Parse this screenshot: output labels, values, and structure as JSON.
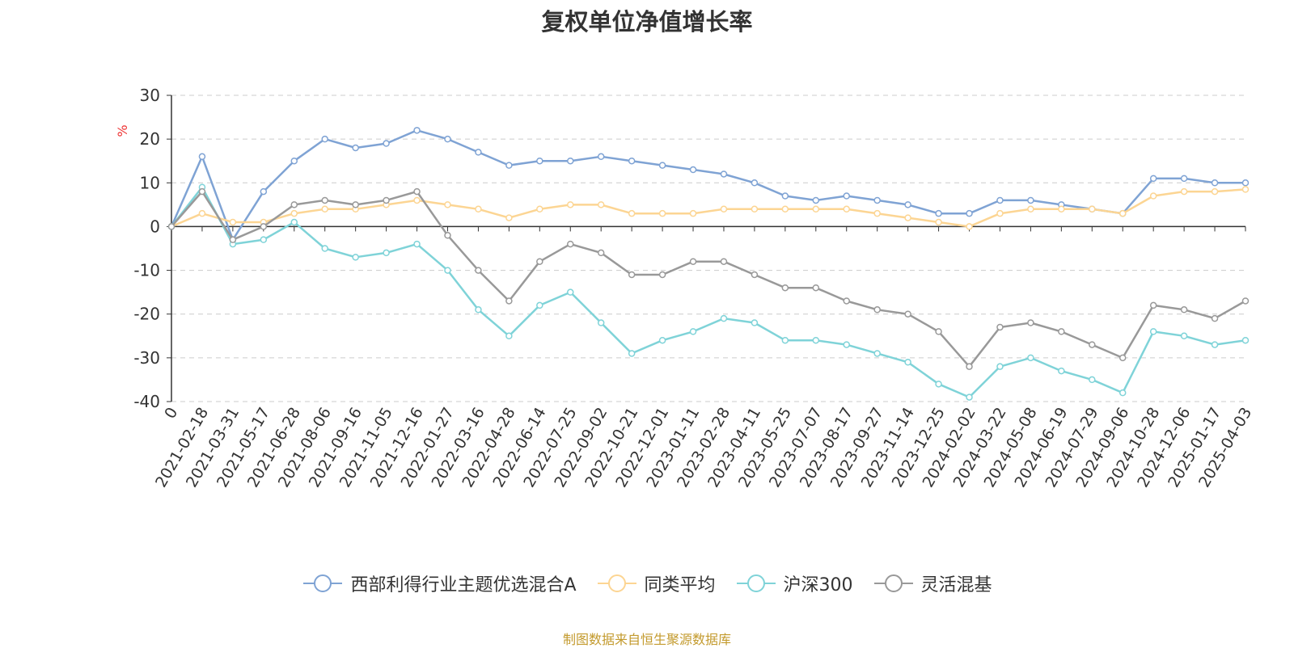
{
  "chart_data": {
    "type": "line",
    "title": "复权单位净值增长率",
    "ylabel": "%",
    "xlabel": "",
    "ylim": [
      -40,
      30
    ],
    "yticks": [
      30,
      20,
      10,
      0,
      -10,
      -20,
      -30,
      -40
    ],
    "grid": true,
    "legend_position": "bottom",
    "categories": [
      "0",
      "2021-02-18",
      "2021-03-31",
      "2021-05-17",
      "2021-06-28",
      "2021-08-06",
      "2021-09-16",
      "2021-11-05",
      "2021-12-16",
      "2022-01-27",
      "2022-03-16",
      "2022-04-28",
      "2022-06-14",
      "2022-07-25",
      "2022-09-02",
      "2022-10-21",
      "2022-12-01",
      "2023-01-11",
      "2023-02-28",
      "2023-04-11",
      "2023-05-25",
      "2023-07-07",
      "2023-08-17",
      "2023-09-27",
      "2023-11-14",
      "2023-12-25",
      "2024-02-02",
      "2024-03-22",
      "2024-05-08",
      "2024-06-19",
      "2024-07-29",
      "2024-09-06",
      "2024-10-28",
      "2024-12-06",
      "2025-01-17",
      "2025-04-03"
    ],
    "series": [
      {
        "name": "西部利得行业主题优选混合A",
        "color": "#7fa3d4",
        "values": [
          0,
          16,
          -3,
          8,
          15,
          20,
          18,
          19,
          22,
          20,
          17,
          14,
          15,
          15,
          16,
          15,
          14,
          13,
          12,
          10,
          7,
          6,
          7,
          6,
          5,
          3,
          3,
          6,
          6,
          5,
          4,
          3,
          11,
          11,
          10,
          10
        ]
      },
      {
        "name": "同类平均",
        "color": "#fcd593",
        "values": [
          0,
          3,
          1,
          1,
          3,
          4,
          4,
          5,
          6,
          5,
          4,
          2,
          4,
          5,
          5,
          3,
          3,
          3,
          4,
          4,
          4,
          4,
          4,
          3,
          2,
          1,
          0,
          3,
          4,
          4,
          4,
          3,
          7,
          8,
          8,
          8.5
        ]
      },
      {
        "name": "沪深300",
        "color": "#7fd3d8",
        "values": [
          0,
          9,
          -4,
          -3,
          1,
          -5,
          -7,
          -6,
          -4,
          -10,
          -19,
          -25,
          -18,
          -15,
          -22,
          -29,
          -26,
          -24,
          -21,
          -22,
          -26,
          -26,
          -27,
          -29,
          -31,
          -36,
          -39,
          -32,
          -30,
          -33,
          -35,
          -38,
          -24,
          -25,
          -27,
          -26
        ]
      },
      {
        "name": "灵活混基",
        "color": "#999999",
        "values": [
          0,
          8,
          -3,
          0,
          5,
          6,
          5,
          6,
          8,
          -2,
          -10,
          -17,
          -8,
          -4,
          -6,
          -11,
          -11,
          -8,
          -8,
          -11,
          -14,
          -14,
          -17,
          -19,
          -20,
          -24,
          -32,
          -23,
          -22,
          -24,
          -27,
          -30,
          -18,
          -19,
          -21,
          -17
        ]
      }
    ]
  },
  "legend": {
    "items": [
      {
        "label": "西部利得行业主题优选混合A",
        "color": "#7fa3d4"
      },
      {
        "label": "同类平均",
        "color": "#fcd593"
      },
      {
        "label": "沪深300",
        "color": "#7fd3d8"
      },
      {
        "label": "灵活混基",
        "color": "#999999"
      }
    ]
  },
  "source_note": "制图数据来自恒生聚源数据库"
}
